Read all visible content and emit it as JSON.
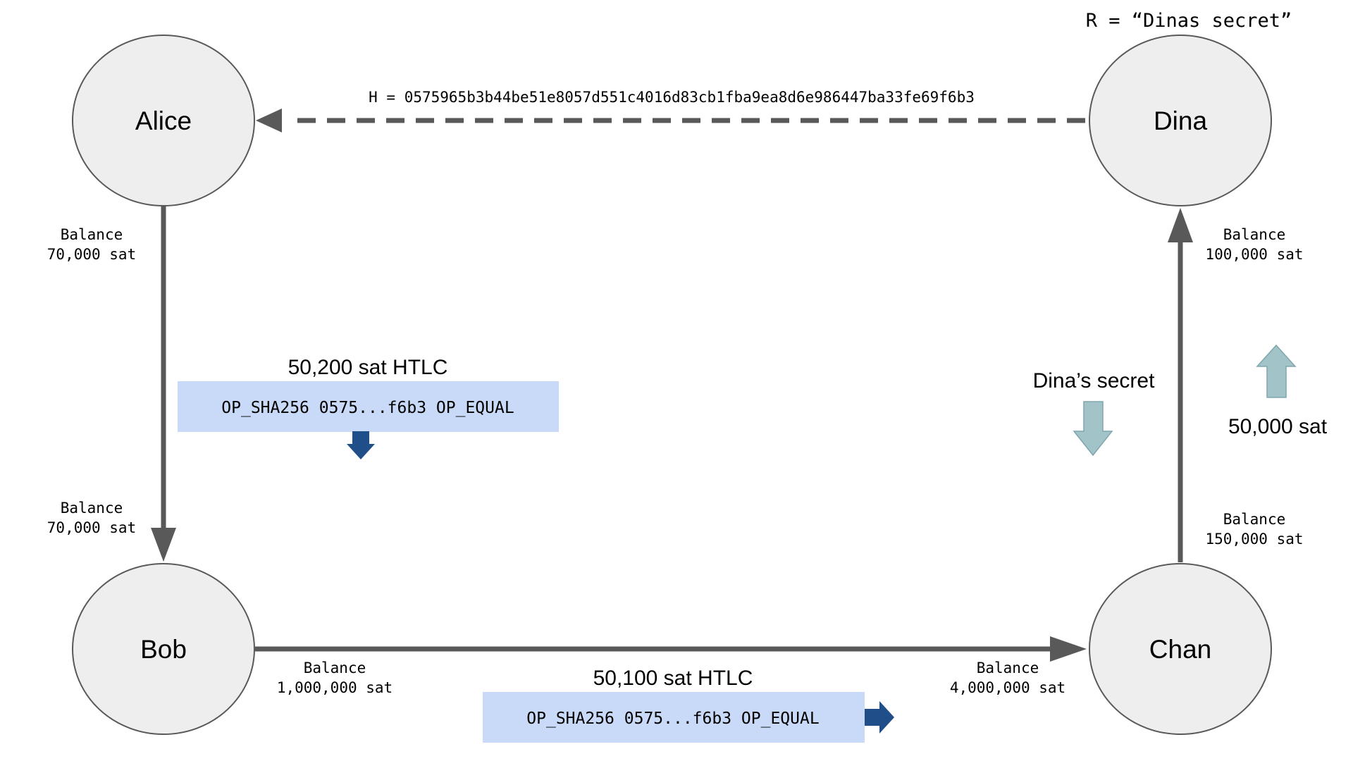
{
  "colors": {
    "node_fill": "#eeeeee",
    "node_stroke": "#595959",
    "edge": "#595959",
    "script_box": "#c9daf8",
    "script_arrow": "#1f4e89",
    "flow_arrow": "#a2c4c9"
  },
  "secret": "R = “Dinas secret”",
  "hash": "H = 0575965b3b44be51e8057d551c4016d83cb1fba9ea8d6e986447ba33fe69f6b3",
  "nodes": {
    "alice": "Alice",
    "dina": "Dina",
    "bob": "Bob",
    "chan": "Chan"
  },
  "balances": {
    "alice_top": {
      "label": "Balance",
      "amount": "70,000 sat"
    },
    "bob_top": {
      "label": "Balance",
      "amount": "70,000 sat"
    },
    "bob_right": {
      "label": "Balance",
      "amount": "1,000,000 sat"
    },
    "chan_left": {
      "label": "Balance",
      "amount": "4,000,000 sat"
    },
    "chan_top": {
      "label": "Balance",
      "amount": "150,000 sat"
    },
    "dina_bottom": {
      "label": "Balance",
      "amount": "100,000 sat"
    }
  },
  "htlc1": {
    "title": "50,200 sat HTLC",
    "script": "OP_SHA256 0575...f6b3 OP_EQUAL"
  },
  "htlc2": {
    "title": "50,100 sat HTLC",
    "script": "OP_SHA256 0575...f6b3 OP_EQUAL"
  },
  "dinas_secret_label": "Dina’s secret",
  "payment_label": "50,000 sat"
}
